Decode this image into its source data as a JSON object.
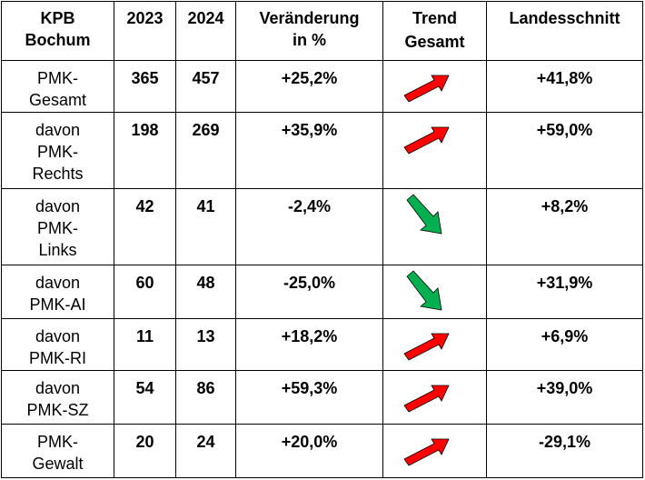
{
  "colors": {
    "arrow_up": "#FF0000",
    "arrow_down": "#00B050"
  },
  "header": {
    "col1_line1": "KPB",
    "col1_line2": "Bochum",
    "col2": "2023",
    "col3": "2024",
    "col4_line1": "Veränderung",
    "col4_line2": "in %",
    "col5_line1": "Trend",
    "col5_line2": "Gesamt",
    "col6": "Landesschnitt"
  },
  "rows": [
    {
      "label_lines": [
        "PMK-",
        "Gesamt"
      ],
      "v2023": "365",
      "v2024": "457",
      "change": "+25,2%",
      "trend": "up",
      "trend_icon": "arrow-up-right-icon",
      "state_avg": "+41,8%"
    },
    {
      "label_lines": [
        "davon",
        "PMK-",
        "Rechts"
      ],
      "v2023": "198",
      "v2024": "269",
      "change": "+35,9%",
      "trend": "up",
      "trend_icon": "arrow-up-right-icon",
      "state_avg": "+59,0%"
    },
    {
      "label_lines": [
        "davon",
        "PMK-",
        "Links"
      ],
      "v2023": "42",
      "v2024": "41",
      "change": "-2,4%",
      "trend": "down",
      "trend_icon": "arrow-down-right-icon",
      "state_avg": "+8,2%"
    },
    {
      "label_lines": [
        "davon",
        "PMK-AI"
      ],
      "v2023": "60",
      "v2024": "48",
      "change": "-25,0%",
      "trend": "down",
      "trend_icon": "arrow-down-right-icon",
      "state_avg": "+31,9%"
    },
    {
      "label_lines": [
        "davon",
        "PMK-RI"
      ],
      "v2023": "11",
      "v2024": "13",
      "change": "+18,2%",
      "trend": "up",
      "trend_icon": "arrow-up-right-icon",
      "state_avg": "+6,9%"
    },
    {
      "label_lines": [
        "davon",
        "PMK-SZ"
      ],
      "v2023": "54",
      "v2024": "86",
      "change": "+59,3%",
      "trend": "up",
      "trend_icon": "arrow-up-right-icon",
      "state_avg": "+39,0%"
    },
    {
      "label_lines": [
        "PMK-",
        "Gewalt"
      ],
      "v2023": "20",
      "v2024": "24",
      "change": "+20,0%",
      "trend": "up",
      "trend_icon": "arrow-up-right-icon",
      "state_avg": "-29,1%"
    }
  ]
}
